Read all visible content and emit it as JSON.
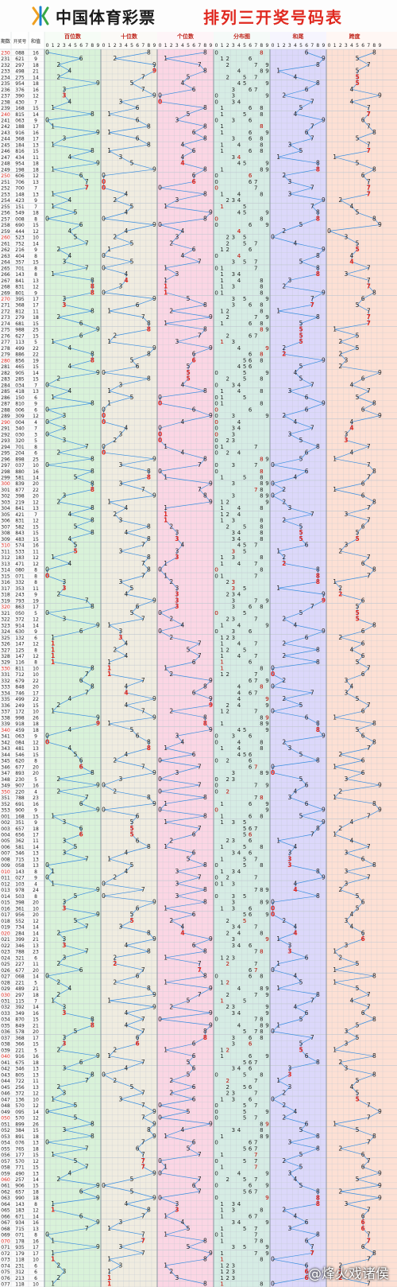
{
  "header": {
    "org_name": "中国体育彩票",
    "title": "排列三开奖号码表"
  },
  "table": {
    "col_headers": [
      "期数",
      "开奖号",
      "和值"
    ],
    "sections": [
      {
        "id": "bai",
        "label": "百位数",
        "color": "#d9f2d9"
      },
      {
        "id": "shi",
        "label": "十位数",
        "color": "#f0ece0"
      },
      {
        "id": "ge",
        "label": "个位数",
        "color": "#fbd6e4"
      },
      {
        "id": "fen",
        "label": "分布图",
        "color": "#d6ece4"
      },
      {
        "id": "hewei",
        "label": "和尾",
        "color": "#dcd8fa"
      },
      {
        "id": "kuadu",
        "label": "跨度",
        "color": "#fde0d4"
      }
    ],
    "digits": [
      "0",
      "1",
      "2",
      "3",
      "4",
      "5",
      "6",
      "7",
      "8",
      "9"
    ],
    "colors": {
      "line": "#3b8fe0",
      "repeat": "#e0281f",
      "grid": "#bfc7cf",
      "text": "#222222",
      "period_red": "#e0281f"
    }
  },
  "draws": [
    [
      "230",
      "088",
      "16"
    ],
    [
      "231",
      "621",
      "9"
    ],
    [
      "232",
      "297",
      "18"
    ],
    [
      "233",
      "498",
      "21"
    ],
    [
      "234",
      "275",
      "14"
    ],
    [
      "235",
      "954",
      "18"
    ],
    [
      "236",
      "376",
      "16"
    ],
    [
      "237",
      "390",
      "12"
    ],
    [
      "238",
      "430",
      "7"
    ],
    [
      "239",
      "168",
      "15"
    ],
    [
      "240",
      "815",
      "14"
    ],
    [
      "241",
      "063",
      "9"
    ],
    [
      "242",
      "188",
      "17"
    ],
    [
      "243",
      "916",
      "16"
    ],
    [
      "244",
      "368",
      "17"
    ],
    [
      "245",
      "184",
      "13"
    ],
    [
      "246",
      "816",
      "15"
    ],
    [
      "247",
      "434",
      "11"
    ],
    [
      "248",
      "954",
      "18"
    ],
    [
      "249",
      "198",
      "18"
    ],
    [
      "250",
      "606",
      "12"
    ],
    [
      "251",
      "706",
      "13"
    ],
    [
      "252",
      "700",
      "7"
    ],
    [
      "253",
      "148",
      "13"
    ],
    [
      "254",
      "423",
      "9"
    ],
    [
      "255",
      "151",
      "7"
    ],
    [
      "256",
      "549",
      "18"
    ],
    [
      "257",
      "008",
      "8"
    ],
    [
      "258",
      "690",
      "15"
    ],
    [
      "259",
      "444",
      "12"
    ],
    [
      "260",
      "523",
      "10"
    ],
    [
      "261",
      "752",
      "14"
    ],
    [
      "262",
      "216",
      "9"
    ],
    [
      "263",
      "404",
      "8"
    ],
    [
      "264",
      "357",
      "15"
    ],
    [
      "265",
      "701",
      "8"
    ],
    [
      "266",
      "143",
      "8"
    ],
    [
      "267",
      "841",
      "13"
    ],
    [
      "268",
      "831",
      "12"
    ],
    [
      "269",
      "801",
      "9"
    ],
    [
      "270",
      "395",
      "17"
    ],
    [
      "271",
      "368",
      "17"
    ],
    [
      "272",
      "812",
      "11"
    ],
    [
      "273",
      "279",
      "18"
    ],
    [
      "274",
      "681",
      "15"
    ],
    [
      "275",
      "988",
      "25"
    ],
    [
      "276",
      "627",
      "15"
    ],
    [
      "277",
      "113",
      "5"
    ],
    [
      "278",
      "499",
      "22"
    ],
    [
      "279",
      "886",
      "22"
    ],
    [
      "280",
      "856",
      "19"
    ],
    [
      "281",
      "465",
      "15"
    ],
    [
      "282",
      "905",
      "14"
    ],
    [
      "283",
      "285",
      "15"
    ],
    [
      "284",
      "034",
      "7"
    ],
    [
      "285",
      "418",
      "13"
    ],
    [
      "286",
      "150",
      "6"
    ],
    [
      "287",
      "810",
      "9"
    ],
    [
      "288",
      "006",
      "6"
    ],
    [
      "289",
      "309",
      "12"
    ],
    [
      "290",
      "004",
      "4"
    ],
    [
      "291",
      "340",
      "7"
    ],
    [
      "292",
      "030",
      "3"
    ],
    [
      "293",
      "320",
      "5"
    ],
    [
      "294",
      "701",
      "8"
    ],
    [
      "295",
      "204",
      "6"
    ],
    [
      "296",
      "898",
      "25"
    ],
    [
      "297",
      "037",
      "10"
    ],
    [
      "298",
      "880",
      "16"
    ],
    [
      "299",
      "581",
      "14"
    ],
    [
      "300",
      "839",
      "20"
    ],
    [
      "301",
      "877",
      "22"
    ],
    [
      "302",
      "398",
      "20"
    ],
    [
      "303",
      "219",
      "12"
    ],
    [
      "304",
      "841",
      "13"
    ],
    [
      "305",
      "421",
      "7"
    ],
    [
      "306",
      "831",
      "12"
    ],
    [
      "307",
      "582",
      "15"
    ],
    [
      "308",
      "843",
      "15"
    ],
    [
      "309",
      "483",
      "15"
    ],
    [
      "310",
      "574",
      "16"
    ],
    [
      "311",
      "533",
      "11"
    ],
    [
      "312",
      "183",
      "12"
    ],
    [
      "313",
      "471",
      "12"
    ],
    [
      "314",
      "080",
      "8"
    ],
    [
      "315",
      "071",
      "8"
    ],
    [
      "316",
      "332",
      "8"
    ],
    [
      "317",
      "353",
      "11"
    ],
    [
      "318",
      "243",
      "9"
    ],
    [
      "319",
      "793",
      "19"
    ],
    [
      "320",
      "863",
      "17"
    ],
    [
      "321",
      "050",
      "5"
    ],
    [
      "322",
      "372",
      "12"
    ],
    [
      "323",
      "914",
      "14"
    ],
    [
      "324",
      "630",
      "9"
    ],
    [
      "325",
      "132",
      "6"
    ],
    [
      "326",
      "147",
      "12"
    ],
    [
      "327",
      "125",
      "8"
    ],
    [
      "328",
      "147",
      "12"
    ],
    [
      "329",
      "116",
      "8"
    ],
    [
      "330",
      "811",
      "10"
    ],
    [
      "331",
      "712",
      "10"
    ],
    [
      "332",
      "679",
      "22"
    ],
    [
      "333",
      "848",
      "20"
    ],
    [
      "334",
      "746",
      "17"
    ],
    [
      "335",
      "499",
      "22"
    ],
    [
      "336",
      "249",
      "15"
    ],
    [
      "337",
      "172",
      "10"
    ],
    [
      "338",
      "998",
      "26"
    ],
    [
      "339",
      "918",
      "18"
    ],
    [
      "340",
      "459",
      "18"
    ],
    [
      "341",
      "063",
      "9"
    ],
    [
      "342",
      "084",
      "12"
    ],
    [
      "343",
      "481",
      "13"
    ],
    [
      "344",
      "546",
      "15"
    ],
    [
      "345",
      "620",
      "8"
    ],
    [
      "346",
      "677",
      "20"
    ],
    [
      "347",
      "893",
      "20"
    ],
    [
      "348",
      "230",
      "5"
    ],
    [
      "349",
      "907",
      "16"
    ],
    [
      "350",
      "220",
      "4"
    ],
    [
      "351",
      "788",
      "23"
    ],
    [
      "352",
      "691",
      "16"
    ],
    [
      "353",
      "900",
      "9"
    ],
    [
      "001",
      "168",
      "15"
    ],
    [
      "002",
      "351",
      "9"
    ],
    [
      "003",
      "657",
      "18"
    ],
    [
      "004",
      "656",
      "17"
    ],
    [
      "005",
      "362",
      "11"
    ],
    [
      "006",
      "581",
      "14"
    ],
    [
      "007",
      "346",
      "13"
    ],
    [
      "008",
      "715",
      "13"
    ],
    [
      "009",
      "058",
      "13"
    ],
    [
      "010",
      "143",
      "8"
    ],
    [
      "011",
      "027",
      "9"
    ],
    [
      "012",
      "103",
      "4"
    ],
    [
      "013",
      "978",
      "24"
    ],
    [
      "014",
      "503",
      "8"
    ],
    [
      "015",
      "398",
      "20"
    ],
    [
      "016",
      "361",
      "10"
    ],
    [
      "017",
      "956",
      "20"
    ],
    [
      "018",
      "552",
      "12"
    ],
    [
      "019",
      "734",
      "14"
    ],
    [
      "020",
      "284",
      "14"
    ],
    [
      "021",
      "399",
      "21"
    ],
    [
      "022",
      "346",
      "13"
    ],
    [
      "023",
      "788",
      "23"
    ],
    [
      "024",
      "321",
      "6"
    ],
    [
      "025",
      "227",
      "11"
    ],
    [
      "026",
      "677",
      "20"
    ],
    [
      "027",
      "068",
      "14"
    ],
    [
      "028",
      "221",
      "5"
    ],
    [
      "029",
      "489",
      "21"
    ],
    [
      "030",
      "297",
      "18"
    ],
    [
      "031",
      "115",
      "7"
    ],
    [
      "032",
      "392",
      "14"
    ],
    [
      "033",
      "349",
      "16"
    ],
    [
      "034",
      "870",
      "15"
    ],
    [
      "035",
      "849",
      "21"
    ],
    [
      "036",
      "578",
      "20"
    ],
    [
      "037",
      "368",
      "17"
    ],
    [
      "038",
      "366",
      "15"
    ],
    [
      "039",
      "221",
      "5"
    ],
    [
      "040",
      "916",
      "16"
    ],
    [
      "041",
      "675",
      "18"
    ],
    [
      "042",
      "346",
      "13"
    ],
    [
      "043",
      "805",
      "13"
    ],
    [
      "044",
      "722",
      "11"
    ],
    [
      "045",
      "256",
      "13"
    ],
    [
      "046",
      "372",
      "12"
    ],
    [
      "047",
      "136",
      "10"
    ],
    [
      "048",
      "570",
      "12"
    ],
    [
      "049",
      "095",
      "14"
    ],
    [
      "050",
      "570",
      "12"
    ],
    [
      "051",
      "899",
      "26"
    ],
    [
      "052",
      "384",
      "15"
    ],
    [
      "053",
      "891",
      "18"
    ],
    [
      "054",
      "076",
      "13"
    ],
    [
      "055",
      "765",
      "18"
    ],
    [
      "056",
      "177",
      "15"
    ],
    [
      "057",
      "570",
      "12"
    ],
    [
      "058",
      "771",
      "15"
    ],
    [
      "059",
      "490",
      "13"
    ],
    [
      "060",
      "257",
      "14"
    ],
    [
      "061",
      "906",
      "15"
    ],
    [
      "062",
      "657",
      "18"
    ],
    [
      "063",
      "990",
      "18"
    ],
    [
      "064",
      "143",
      "8"
    ],
    [
      "065",
      "183",
      "12"
    ],
    [
      "066",
      "671",
      "14"
    ],
    [
      "067",
      "934",
      "16"
    ],
    [
      "068",
      "715",
      "13"
    ],
    [
      "069",
      "071",
      "8"
    ],
    [
      "070",
      "178",
      "16"
    ],
    [
      "071",
      "935",
      "17"
    ],
    [
      "072",
      "179",
      "17"
    ],
    [
      "073",
      "118",
      "10"
    ],
    [
      "074",
      "231",
      "6"
    ],
    [
      "075",
      "312",
      "6"
    ],
    [
      "076",
      "213",
      "6"
    ],
    [
      "077",
      "118",
      "10"
    ]
  ],
  "watermark": "@烽火戏诸侯"
}
